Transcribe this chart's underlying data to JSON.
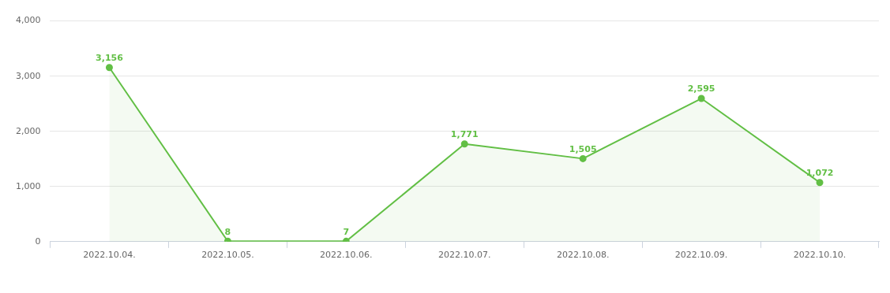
{
  "chart_data": {
    "type": "area",
    "categories": [
      "2022.10.04.",
      "2022.10.05.",
      "2022.10.06.",
      "2022.10.07.",
      "2022.10.08.",
      "2022.10.09.",
      "2022.10.10."
    ],
    "series": [
      {
        "color": "#62bf45",
        "values": [
          3156,
          8,
          7,
          1771,
          1505,
          2595,
          1072
        ],
        "value_labels": [
          "3,156",
          "8",
          "7",
          "1,771",
          "1,505",
          "2,595",
          "1,072"
        ]
      }
    ],
    "ylim": [
      0,
      4000
    ],
    "yticks": [
      0,
      {
        "value": 1000,
        "label": "1,000"
      },
      {
        "value": 2000,
        "label": "2,000"
      },
      {
        "value": 3000,
        "label": "3,000"
      },
      {
        "value": 4000,
        "label": "4,000"
      }
    ],
    "grid": "y",
    "legend": false,
    "marker": "circle",
    "line_style": "solid"
  }
}
